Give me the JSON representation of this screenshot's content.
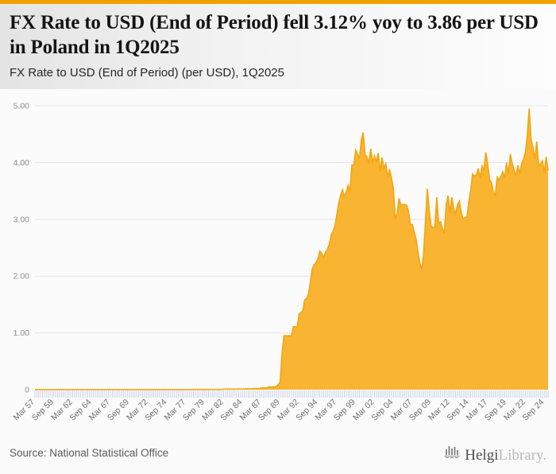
{
  "accent_color": "#F0A202",
  "header": {
    "title": "FX Rate to USD (End of Period) fell 3.12% yoy to 3.86 per USD in Poland in 1Q2025",
    "subtitle": "FX Rate to USD (End of Period) (per USD), 1Q2025"
  },
  "footer": {
    "source": "Source: National Statistical Office",
    "logo": {
      "text_primary": "Helgi",
      "text_secondary": "Library."
    }
  },
  "chart_data": {
    "type": "area",
    "title": "FX Rate to USD (End of Period) (per USD), 1Q2025",
    "series_name": "FX Rate to USD (End of Period), Poland",
    "unit": "per USD",
    "frequency": "quarterly",
    "x_start": "Mar 1957",
    "x_end": "Mar 2025",
    "latest_value": 3.86,
    "yoy_change_pct": -3.12,
    "ylim": [
      0,
      5
    ],
    "yticks": [
      5,
      4,
      3,
      2,
      1,
      0
    ],
    "ytick_labels": [
      "5.00",
      "4.00",
      "3.00",
      "2.00",
      "1.00",
      "0"
    ],
    "xtick_every": 10,
    "xtick_labels": [
      "Mar 57",
      "Sep 59",
      "Mar 62",
      "Sep 64",
      "Mar 67",
      "Sep 69",
      "Mar 72",
      "Sep 74",
      "Mar 77",
      "Sep 79",
      "Mar 82",
      "Sep 84",
      "Mar 87",
      "Sep 89",
      "Mar 92",
      "Sep 94",
      "Mar 97",
      "Sep 99",
      "Mar 02",
      "Sep 04",
      "Mar 07",
      "Sep 09",
      "Mar 12",
      "Sep 14",
      "Mar 17",
      "Sep 19",
      "Mar 22",
      "Sep 24"
    ],
    "grid": true,
    "legend": "none",
    "fill_color": "#F9B431",
    "line_color": "#F2A60E",
    "tick_color": "#C9D1E8",
    "grid_color": "#E4E4E4",
    "ylabel_color": "#8C8C8C",
    "xlabel_color": "#707070",
    "values": [
      0.002,
      0.002,
      0.002,
      0.002,
      0.002,
      0.002,
      0.002,
      0.002,
      0.002,
      0.002,
      0.002,
      0.002,
      0.002,
      0.002,
      0.002,
      0.002,
      0.002,
      0.002,
      0.002,
      0.002,
      0.002,
      0.002,
      0.002,
      0.002,
      0.002,
      0.002,
      0.002,
      0.002,
      0.002,
      0.002,
      0.002,
      0.002,
      0.0025,
      0.0025,
      0.0025,
      0.0025,
      0.0025,
      0.0025,
      0.0025,
      0.0025,
      0.0025,
      0.0025,
      0.0025,
      0.0025,
      0.0025,
      0.0025,
      0.0025,
      0.0025,
      0.0025,
      0.0025,
      0.0025,
      0.0025,
      0.0025,
      0.0025,
      0.0025,
      0.0025,
      0.0025,
      0.0025,
      0.0025,
      0.0025,
      0.003,
      0.003,
      0.003,
      0.003,
      0.003,
      0.003,
      0.003,
      0.003,
      0.003,
      0.003,
      0.003,
      0.003,
      0.003,
      0.003,
      0.003,
      0.003,
      0.003,
      0.003,
      0.003,
      0.003,
      0.003,
      0.003,
      0.003,
      0.003,
      0.004,
      0.004,
      0.004,
      0.004,
      0.004,
      0.004,
      0.004,
      0.004,
      0.004,
      0.004,
      0.004,
      0.004,
      0.004,
      0.004,
      0.004,
      0.004,
      0.009,
      0.009,
      0.009,
      0.009,
      0.01,
      0.01,
      0.01,
      0.01,
      0.012,
      0.012,
      0.012,
      0.012,
      0.015,
      0.015,
      0.015,
      0.015,
      0.02,
      0.02,
      0.02,
      0.02,
      0.032,
      0.032,
      0.032,
      0.032,
      0.05,
      0.05,
      0.05,
      0.05,
      0.06,
      0.09,
      0.14,
      0.65,
      0.95,
      0.95,
      0.95,
      0.95,
      0.95,
      1.11,
      1.11,
      1.1,
      1.33,
      1.36,
      1.39,
      1.58,
      1.61,
      1.69,
      1.9,
      2.13,
      2.2,
      2.24,
      2.3,
      2.44,
      2.4,
      2.33,
      2.42,
      2.47,
      2.56,
      2.72,
      2.79,
      2.88,
      3.07,
      3.28,
      3.42,
      3.52,
      3.4,
      3.48,
      3.6,
      3.5,
      3.96,
      3.95,
      4.22,
      4.15,
      4.07,
      4.4,
      4.53,
      4.14,
      4.1,
      3.99,
      4.24,
      3.99,
      4.12,
      4.01,
      4.17,
      3.84,
      4.09,
      3.9,
      3.98,
      3.74,
      3.88,
      3.73,
      3.54,
      2.99,
      3.11,
      3.37,
      3.25,
      3.26,
      3.26,
      3.25,
      3.14,
      2.91,
      2.91,
      2.78,
      2.66,
      2.44,
      2.23,
      2.12,
      2.37,
      2.96,
      3.54,
      3.17,
      2.88,
      2.85,
      2.87,
      3.39,
      2.93,
      2.96,
      2.84,
      2.75,
      3.26,
      3.42,
      3.11,
      3.39,
      3.18,
      3.1,
      3.26,
      3.32,
      3.12,
      3.01,
      3.03,
      3.04,
      3.31,
      3.51,
      3.8,
      3.76,
      3.78,
      3.9,
      3.73,
      3.94,
      3.86,
      4.18,
      3.97,
      3.7,
      3.65,
      3.48,
      3.42,
      3.74,
      3.69,
      3.76,
      3.84,
      3.73,
      4.0,
      3.8,
      4.15,
      3.98,
      3.87,
      3.76,
      3.95,
      3.8,
      3.98,
      4.06,
      4.18,
      4.48,
      4.95,
      4.4,
      4.27,
      4.06,
      4.37,
      3.94,
      3.98,
      4.03,
      3.82,
      4.1,
      3.86
    ]
  }
}
